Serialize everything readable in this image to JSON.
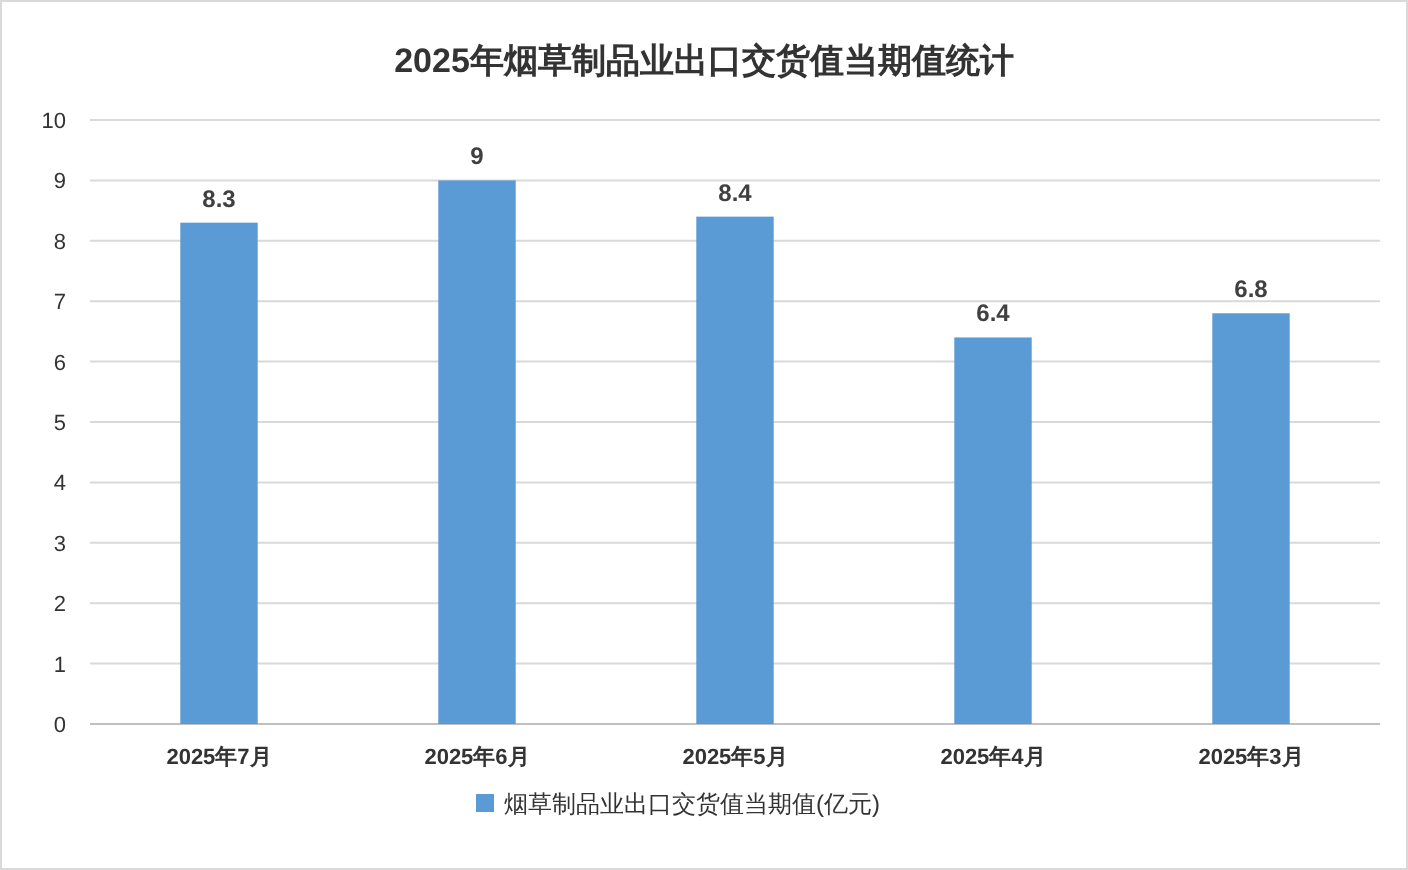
{
  "chart_data": {
    "type": "bar",
    "title": "2025年烟草制品业出口交货值当期值统计",
    "categories": [
      "2025年7月",
      "2025年6月",
      "2025年5月",
      "2025年4月",
      "2025年3月"
    ],
    "series": [
      {
        "name": "烟草制品业出口交货值当期值(亿元)",
        "color": "#5b9bd5",
        "values": [
          8.3,
          9,
          8.4,
          6.4,
          6.8
        ]
      }
    ],
    "ylim": [
      0,
      10
    ],
    "yticks": [
      0,
      1,
      2,
      3,
      4,
      5,
      6,
      7,
      8,
      9,
      10
    ],
    "grid": "y",
    "data_labels": true,
    "legend": "bottom"
  }
}
